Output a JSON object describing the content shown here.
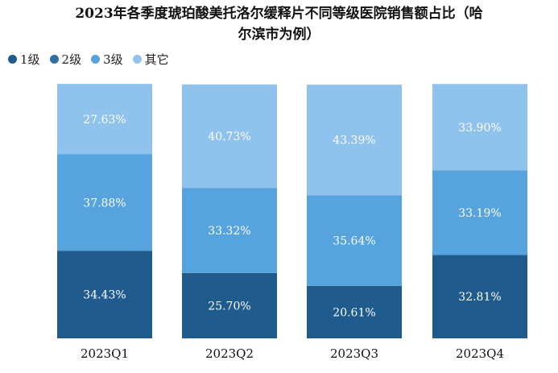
{
  "chart_data": {
    "type": "bar",
    "stacked": true,
    "title": "2023年各季度琥珀酸美托洛尔缓释片不同等级医院销售额占比（哈尔滨市为例）",
    "title_lines": [
      "2023年各季度琥珀酸美托洛尔缓释片不同等级医院销售额占比（哈",
      "尔滨市为例）"
    ],
    "categories": [
      "2023Q1",
      "2023Q2",
      "2023Q3",
      "2023Q4"
    ],
    "series": [
      {
        "name": "1级",
        "color": "#1f5b8c",
        "values": [
          34.43,
          25.7,
          20.61,
          32.81
        ],
        "labels": [
          "34.43%",
          "25.70%",
          "20.61%",
          "32.81%"
        ]
      },
      {
        "name": "2级",
        "color": "#2f6fa6",
        "values": [
          0,
          0,
          0,
          0
        ],
        "labels": [
          "",
          "",
          "",
          ""
        ]
      },
      {
        "name": "3级",
        "color": "#56a3dd",
        "values": [
          37.88,
          33.32,
          35.64,
          33.19
        ],
        "labels": [
          "37.88%",
          "33.32%",
          "35.64%",
          "33.19%"
        ]
      },
      {
        "name": "其它",
        "color": "#8fc2ec",
        "values": [
          27.63,
          40.73,
          43.39,
          33.9
        ],
        "labels": [
          "27.63%",
          "40.73%",
          "43.39%",
          "33.90%"
        ]
      }
    ],
    "ylim": [
      0,
      100
    ],
    "legend_position": "top-left",
    "grid": false
  }
}
